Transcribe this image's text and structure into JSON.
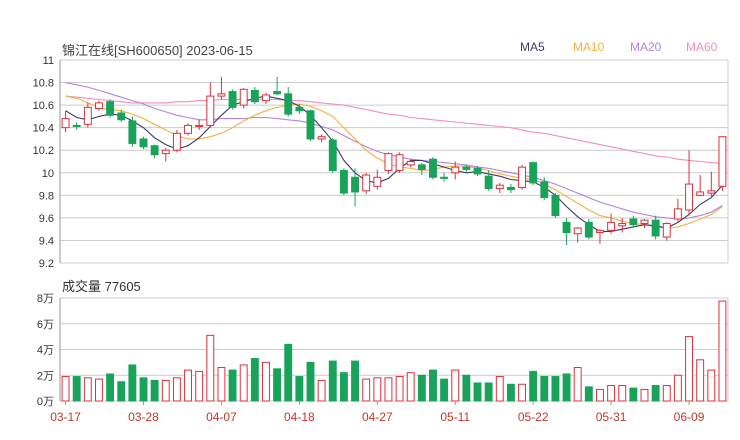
{
  "title": "锦江在线[SH600650] 2023-06-15",
  "volume_label": "成交量",
  "volume_value": "77605",
  "legend": [
    {
      "name": "MA5",
      "color": "#3a3a6a"
    },
    {
      "name": "MA10",
      "color": "#f5b041"
    },
    {
      "name": "MA20",
      "color": "#b383e0"
    },
    {
      "name": "MA60",
      "color": "#f08fc0"
    }
  ],
  "colors": {
    "up": "#e0303a",
    "down": "#19a35a",
    "grid": "#cccccc"
  },
  "chart_data": [
    {
      "type": "candlestick",
      "title": "锦江在线[SH600650] 2023-06-15",
      "ylim": [
        9.2,
        11
      ],
      "yticks": [
        "11",
        "10.8",
        "10.6",
        "10.4",
        "10.2",
        "10",
        "9.8",
        "9.6",
        "9.4",
        "9.2"
      ],
      "xticks": [
        {
          "index": 0,
          "label": "03-17"
        },
        {
          "index": 7,
          "label": "03-28"
        },
        {
          "index": 14,
          "label": "04-07"
        },
        {
          "index": 21,
          "label": "04-18"
        },
        {
          "index": 28,
          "label": "04-27"
        },
        {
          "index": 35,
          "label": "05-11"
        },
        {
          "index": 42,
          "label": "05-22"
        },
        {
          "index": 49,
          "label": "05-31"
        },
        {
          "index": 56,
          "label": "06-09"
        }
      ],
      "ohlc": [
        [
          10.4,
          10.55,
          10.36,
          10.48
        ],
        [
          10.42,
          10.45,
          10.38,
          10.41
        ],
        [
          10.43,
          10.62,
          10.4,
          10.58
        ],
        [
          10.57,
          10.64,
          10.55,
          10.62
        ],
        [
          10.63,
          10.65,
          10.49,
          10.51
        ],
        [
          10.53,
          10.56,
          10.45,
          10.47
        ],
        [
          10.46,
          10.5,
          10.23,
          10.26
        ],
        [
          10.3,
          10.32,
          10.21,
          10.23
        ],
        [
          10.24,
          10.25,
          10.13,
          10.16
        ],
        [
          10.17,
          10.22,
          10.1,
          10.2
        ],
        [
          10.2,
          10.38,
          10.18,
          10.35
        ],
        [
          10.35,
          10.44,
          10.33,
          10.42
        ],
        [
          10.41,
          10.47,
          10.38,
          10.42
        ],
        [
          10.42,
          10.8,
          10.4,
          10.68
        ],
        [
          10.68,
          10.85,
          10.65,
          10.7
        ],
        [
          10.72,
          10.74,
          10.56,
          10.58
        ],
        [
          10.6,
          10.75,
          10.57,
          10.74
        ],
        [
          10.73,
          10.76,
          10.61,
          10.63
        ],
        [
          10.64,
          10.71,
          10.61,
          10.69
        ],
        [
          10.72,
          10.85,
          10.69,
          10.7
        ],
        [
          10.7,
          10.76,
          10.5,
          10.52
        ],
        [
          10.58,
          10.61,
          10.52,
          10.55
        ],
        [
          10.55,
          10.56,
          10.28,
          10.3
        ],
        [
          10.3,
          10.34,
          10.27,
          10.32
        ],
        [
          10.29,
          10.31,
          10.0,
          10.02
        ],
        [
          10.02,
          10.04,
          9.8,
          9.82
        ],
        [
          9.96,
          10.04,
          9.7,
          9.83
        ],
        [
          9.84,
          10.0,
          9.81,
          9.98
        ],
        [
          9.88,
          10.03,
          9.85,
          9.96
        ],
        [
          10.02,
          10.18,
          9.99,
          10.17
        ],
        [
          10.02,
          10.18,
          10.0,
          10.16
        ],
        [
          10.07,
          10.12,
          10.05,
          10.1
        ],
        [
          10.07,
          10.09,
          9.98,
          10.03
        ],
        [
          10.12,
          10.14,
          9.94,
          9.96
        ],
        [
          9.96,
          10.0,
          9.92,
          9.95
        ],
        [
          10.0,
          10.1,
          9.94,
          10.05
        ],
        [
          10.05,
          10.07,
          10.0,
          10.03
        ],
        [
          10.04,
          10.06,
          9.97,
          9.99
        ],
        [
          9.97,
          10.02,
          9.84,
          9.86
        ],
        [
          9.86,
          9.91,
          9.82,
          9.89
        ],
        [
          9.87,
          9.9,
          9.82,
          9.85
        ],
        [
          9.87,
          10.07,
          9.85,
          10.05
        ],
        [
          10.09,
          10.1,
          9.89,
          9.91
        ],
        [
          9.92,
          9.96,
          9.76,
          9.78
        ],
        [
          9.8,
          9.82,
          9.6,
          9.62
        ],
        [
          9.56,
          9.6,
          9.36,
          9.47
        ],
        [
          9.46,
          9.52,
          9.38,
          9.51
        ],
        [
          9.56,
          9.59,
          9.41,
          9.43
        ],
        [
          9.47,
          9.5,
          9.37,
          9.49
        ],
        [
          9.49,
          9.64,
          9.46,
          9.56
        ],
        [
          9.53,
          9.6,
          9.47,
          9.55
        ],
        [
          9.59,
          9.62,
          9.52,
          9.54
        ],
        [
          9.55,
          9.59,
          9.51,
          9.58
        ],
        [
          9.58,
          9.62,
          9.41,
          9.44
        ],
        [
          9.43,
          9.56,
          9.4,
          9.55
        ],
        [
          9.59,
          9.77,
          9.56,
          9.68
        ],
        [
          9.67,
          10.2,
          9.62,
          9.9
        ],
        [
          9.8,
          9.98,
          9.8,
          9.83
        ],
        [
          9.82,
          10.01,
          9.79,
          9.84
        ],
        [
          9.88,
          10.32,
          9.84,
          10.32
        ]
      ],
      "ma": {
        "MA5": [
          10.55,
          10.49,
          10.47,
          10.5,
          10.52,
          10.51,
          10.46,
          10.4,
          10.31,
          10.25,
          10.21,
          10.24,
          10.31,
          10.41,
          10.51,
          10.6,
          10.63,
          10.66,
          10.68,
          10.66,
          10.64,
          10.59,
          10.51,
          10.4,
          10.28,
          10.11,
          10.0,
          9.93,
          9.91,
          9.95,
          10.04,
          10.11,
          10.11,
          10.08,
          10.05,
          10.02,
          10.0,
          10.01,
          9.99,
          9.97,
          9.94,
          9.93,
          9.92,
          9.87,
          9.8,
          9.7,
          9.61,
          9.54,
          9.48,
          9.48,
          9.5,
          9.52,
          9.54,
          9.53,
          9.51,
          9.56,
          9.63,
          9.72,
          9.78,
          9.89
        ],
        "MA10": [
          10.68,
          10.66,
          10.62,
          10.58,
          10.56,
          10.55,
          10.52,
          10.48,
          10.43,
          10.38,
          10.33,
          10.3,
          10.3,
          10.32,
          10.35,
          10.4,
          10.46,
          10.51,
          10.55,
          10.58,
          10.6,
          10.61,
          10.59,
          10.55,
          10.5,
          10.4,
          10.3,
          10.2,
          10.13,
          10.08,
          10.05,
          10.04,
          10.02,
          10.03,
          10.05,
          10.06,
          10.06,
          10.04,
          10.02,
          9.99,
          9.97,
          9.95,
          9.94,
          9.9,
          9.85,
          9.79,
          9.73,
          9.67,
          9.62,
          9.6,
          9.57,
          9.55,
          9.54,
          9.52,
          9.51,
          9.52,
          9.55,
          9.59,
          9.63,
          9.7
        ],
        "MA20": [
          10.8,
          10.78,
          10.76,
          10.73,
          10.7,
          10.67,
          10.64,
          10.61,
          10.57,
          10.54,
          10.51,
          10.49,
          10.47,
          10.47,
          10.48,
          10.48,
          10.48,
          10.49,
          10.49,
          10.48,
          10.47,
          10.46,
          10.44,
          10.41,
          10.38,
          10.33,
          10.28,
          10.23,
          10.19,
          10.16,
          10.14,
          10.12,
          10.11,
          10.1,
          10.09,
          10.08,
          10.07,
          10.05,
          10.04,
          10.02,
          10.0,
          9.98,
          9.96,
          9.93,
          9.9,
          9.86,
          9.82,
          9.78,
          9.74,
          9.71,
          9.68,
          9.65,
          9.63,
          9.61,
          9.6,
          9.59,
          9.6,
          9.62,
          9.65,
          9.71
        ],
        "MA60": [
          10.68,
          10.67,
          10.66,
          10.65,
          10.64,
          10.63,
          10.62,
          10.62,
          10.62,
          10.62,
          10.63,
          10.63,
          10.64,
          10.64,
          10.65,
          10.65,
          10.65,
          10.65,
          10.65,
          10.65,
          10.64,
          10.64,
          10.63,
          10.62,
          10.61,
          10.6,
          10.58,
          10.56,
          10.54,
          10.52,
          10.51,
          10.49,
          10.48,
          10.47,
          10.46,
          10.45,
          10.44,
          10.43,
          10.42,
          10.41,
          10.4,
          10.38,
          10.36,
          10.35,
          10.33,
          10.31,
          10.29,
          10.27,
          10.25,
          10.23,
          10.21,
          10.19,
          10.17,
          10.15,
          10.14,
          10.12,
          10.11,
          10.1,
          10.09,
          10.08
        ]
      }
    },
    {
      "type": "bar",
      "title": "成交量 77605",
      "ylim": [
        0,
        80000
      ],
      "yticks": [
        "8万",
        "6万",
        "4万",
        "2万",
        "0万"
      ],
      "values": [
        19000,
        19000,
        18000,
        17000,
        21000,
        15000,
        28000,
        18000,
        16000,
        16000,
        18000,
        24000,
        23000,
        51000,
        26000,
        24000,
        28000,
        33000,
        30000,
        25000,
        44000,
        19000,
        30000,
        16000,
        31000,
        22000,
        31000,
        17000,
        18000,
        18000,
        19000,
        22000,
        20000,
        24000,
        17000,
        24000,
        20000,
        14000,
        14000,
        19000,
        13000,
        13000,
        23000,
        19000,
        19000,
        21000,
        26000,
        11000,
        9000,
        12000,
        12000,
        10000,
        9000,
        12000,
        12000,
        20000,
        50000,
        32000,
        24000,
        77605
      ]
    }
  ]
}
